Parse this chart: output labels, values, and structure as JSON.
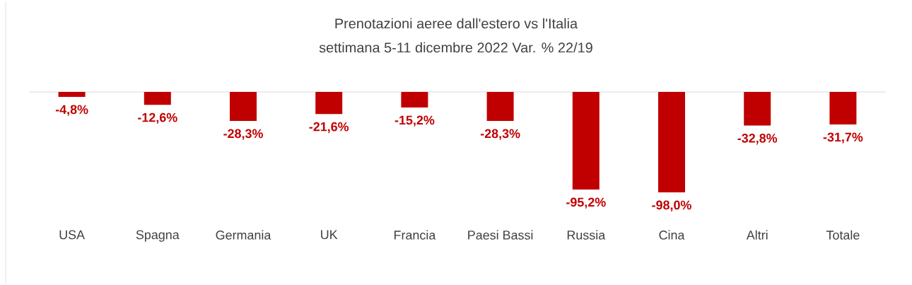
{
  "chart_data": {
    "type": "bar",
    "title": "Prenotazioni aeree dall'estero vs l'Italia",
    "subtitle": "settimana 5-11 dicembre 2022 Var. % 22/19",
    "categories": [
      "USA",
      "Spagna",
      "Germania",
      "UK",
      "Francia",
      "Paesi Bassi",
      "Russia",
      "Cina",
      "Altri",
      "Totale"
    ],
    "values": [
      -4.8,
      -12.6,
      -28.3,
      -21.6,
      -15.2,
      -28.3,
      -95.2,
      -98.0,
      -32.8,
      -31.7
    ],
    "value_labels": [
      "-4,8%",
      "-12,6%",
      "-28,3%",
      "-21,6%",
      "-15,2%",
      "-28,3%",
      "-95,2%",
      "-98,0%",
      "-32,8%",
      "-31,7%"
    ],
    "color": "#c00000"
  }
}
